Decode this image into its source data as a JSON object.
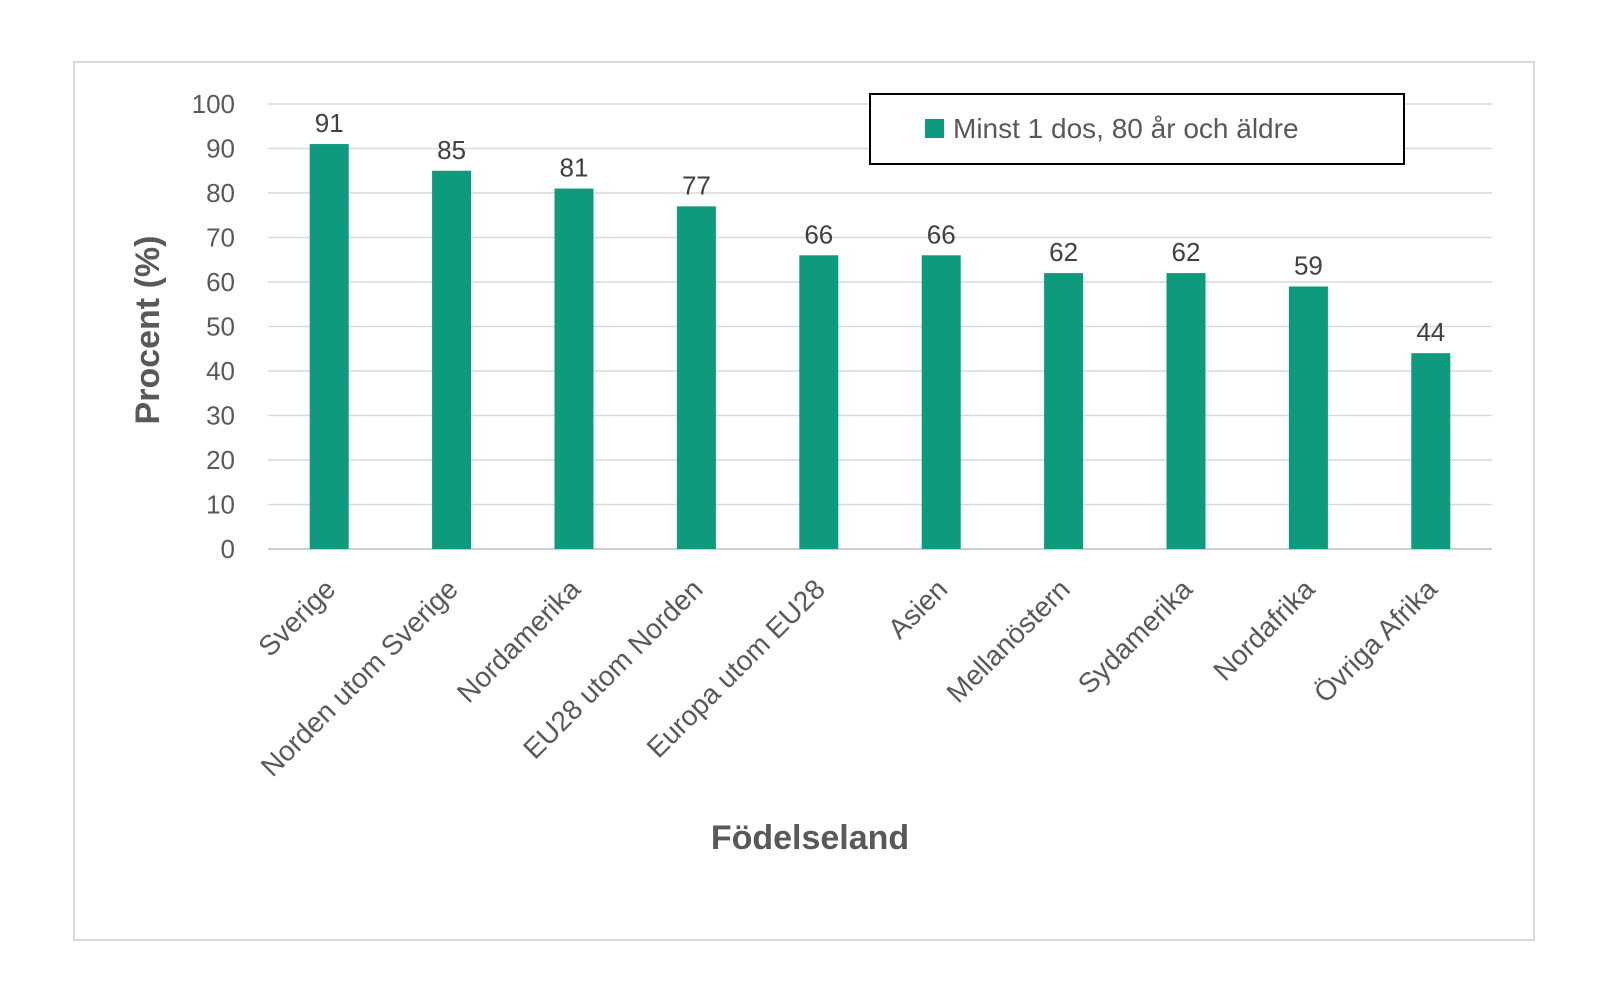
{
  "chart_data": {
    "type": "bar",
    "categories": [
      "Sverige",
      "Norden utom Sverige",
      "Nordamerika",
      "EU28 utom Norden",
      "Europa utom EU28",
      "Asien",
      "Mellanöstern",
      "Sydamerika",
      "Nordafrika",
      "Övriga Afrika"
    ],
    "series": [
      {
        "name": "Minst 1 dos, 80 år och äldre",
        "values": [
          91,
          85,
          81,
          77,
          66,
          66,
          62,
          62,
          59,
          44
        ]
      }
    ],
    "data_labels": [
      "91",
      "85",
      "81",
      "77",
      "66",
      "66",
      "62",
      "62",
      "59",
      "44"
    ],
    "xlabel": "Födelseland",
    "ylabel": "Procent (%)",
    "ylim": [
      0,
      100
    ],
    "yticks": [
      0,
      10,
      20,
      30,
      40,
      50,
      60,
      70,
      80,
      90,
      100
    ],
    "grid": true,
    "legend_position": "top-right",
    "bar_color": "#0e9a7c"
  }
}
